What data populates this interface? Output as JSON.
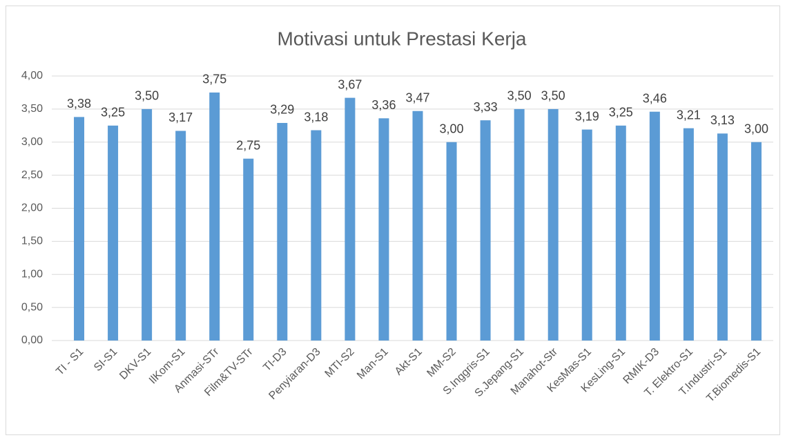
{
  "chart_data": {
    "type": "bar",
    "title": "Motivasi untuk Prestasi Kerja",
    "categories": [
      "TI - S1",
      "SI-S1",
      "DKV-S1",
      "IlKom-S1",
      "Anmasi-STr",
      "Film&TV-STr",
      "TI-D3",
      "Penyiaran-D3",
      "MTI-S2",
      "Man-S1",
      "Akt-S1",
      "MM-S2",
      "S.Inggris-S1",
      "S.Jepang-S1",
      "Manahot-Str",
      "KesMas-S1",
      "KesLing-S1",
      "RMIK-D3",
      "T. Elektro-S1",
      "T.Industri-S1",
      "T.Biomedis-S1"
    ],
    "values": [
      3.38,
      3.25,
      3.5,
      3.17,
      3.75,
      2.75,
      3.29,
      3.18,
      3.67,
      3.36,
      3.47,
      3.0,
      3.33,
      3.5,
      3.5,
      3.19,
      3.25,
      3.46,
      3.21,
      3.13,
      3.0
    ],
    "value_labels": [
      "3,38",
      "3,25",
      "3,50",
      "3,17",
      "3,75",
      "2,75",
      "3,29",
      "3,18",
      "3,67",
      "3,36",
      "3,47",
      "3,00",
      "3,33",
      "3,50",
      "3,50",
      "3,19",
      "3,25",
      "3,46",
      "3,21",
      "3,13",
      "3,00"
    ],
    "color": "#5b9bd5",
    "ylim": [
      0,
      4
    ],
    "yticks": [
      {
        "value": 0,
        "label": "0,00"
      },
      {
        "value": 0.5,
        "label": "0,50"
      },
      {
        "value": 1,
        "label": "1,00"
      },
      {
        "value": 1.5,
        "label": "1,50"
      },
      {
        "value": 2,
        "label": "2,00"
      },
      {
        "value": 2.5,
        "label": "2,50"
      },
      {
        "value": 3,
        "label": "3,00"
      },
      {
        "value": 3.5,
        "label": "3,50"
      },
      {
        "value": 4,
        "label": "4,00"
      }
    ],
    "grid": true
  }
}
